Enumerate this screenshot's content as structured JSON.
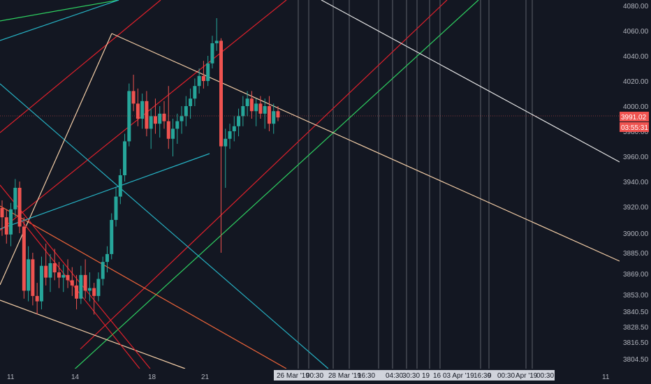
{
  "chart_data": {
    "type": "candlestick",
    "title": "",
    "grid": false,
    "legend": "none",
    "ylim": [
      3796,
      4088
    ],
    "y_ticks": [
      "4080.00",
      "4060.00",
      "4040.00",
      "4020.00",
      "4000.00",
      "3980.00",
      "3960.00",
      "3940.00",
      "3920.00",
      "3900.00",
      "3885.00",
      "3869.00",
      "3853.00",
      "3840.50",
      "3828.50",
      "3816.50",
      "3804.50"
    ],
    "x_ticks": [
      {
        "label": "11"
      },
      {
        "label": "14"
      },
      {
        "label": "18"
      },
      {
        "label": "21"
      },
      {
        "label": "11"
      }
    ],
    "x_markers": [
      "26 Mar '19",
      "00:30",
      "28 Mar '19",
      "16:30",
      "04:30",
      "30:30",
      "19",
      "16",
      "03 Apr '19",
      "16:30",
      "9",
      "00:30",
      "Apr '19",
      "00:30"
    ],
    "price_label": "3991.02",
    "countdown_label": "03:55:31",
    "current_price": 3991.02,
    "colors": {
      "background": "#131722",
      "up": "#26a69a",
      "down": "#ef5350",
      "red_line": "#e0202b",
      "green_line": "#2ed161",
      "teal_line": "#26b2c4",
      "peach_line": "#f5cfa8",
      "white_line": "#e8e8e8",
      "orange_line": "#f0653a",
      "vline": "#5d606b",
      "axis_text": "#b2b5be"
    },
    "candles": [
      [
        3919,
        3925,
        3898,
        3912
      ],
      [
        3912,
        3918,
        3892,
        3899
      ],
      [
        3899,
        3923,
        3890,
        3918
      ],
      [
        3918,
        3942,
        3912,
        3935
      ],
      [
        3935,
        3940,
        3900,
        3905
      ],
      [
        3905,
        3912,
        3850,
        3856
      ],
      [
        3856,
        3890,
        3848,
        3880
      ],
      [
        3880,
        3885,
        3845,
        3852
      ],
      [
        3852,
        3862,
        3838,
        3848
      ],
      [
        3848,
        3882,
        3842,
        3875
      ],
      [
        3875,
        3892,
        3860,
        3866
      ],
      [
        3866,
        3884,
        3855,
        3877
      ],
      [
        3877,
        3888,
        3864,
        3870
      ],
      [
        3870,
        3878,
        3858,
        3866
      ],
      [
        3866,
        3876,
        3855,
        3868
      ],
      [
        3868,
        3880,
        3858,
        3864
      ],
      [
        3864,
        3874,
        3852,
        3860
      ],
      [
        3860,
        3868,
        3842,
        3850
      ],
      [
        3850,
        3875,
        3846,
        3868
      ],
      [
        3868,
        3880,
        3850,
        3856
      ],
      [
        3856,
        3870,
        3848,
        3858
      ],
      [
        3858,
        3862,
        3838,
        3852
      ],
      [
        3852,
        3870,
        3848,
        3865
      ],
      [
        3865,
        3882,
        3860,
        3878
      ],
      [
        3878,
        3890,
        3870,
        3884
      ],
      [
        3884,
        3915,
        3880,
        3910
      ],
      [
        3910,
        3935,
        3905,
        3928
      ],
      [
        3928,
        3950,
        3922,
        3945
      ],
      [
        3945,
        3978,
        3940,
        3972
      ],
      [
        3972,
        4018,
        3968,
        4012
      ],
      [
        4012,
        4025,
        3996,
        4002
      ],
      [
        4002,
        4014,
        3984,
        3990
      ],
      [
        3990,
        4010,
        3982,
        4004
      ],
      [
        4004,
        4012,
        3976,
        3982
      ],
      [
        3982,
        3998,
        3966,
        3992
      ],
      [
        3992,
        4006,
        3978,
        3986
      ],
      [
        3986,
        4000,
        3975,
        3994
      ],
      [
        3994,
        4004,
        3982,
        3988
      ],
      [
        3988,
        4016,
        3966,
        3974
      ],
      [
        3974,
        3990,
        3960,
        3982
      ],
      [
        3982,
        3994,
        3970,
        3988
      ],
      [
        3988,
        4000,
        3978,
        3992
      ],
      [
        3992,
        4008,
        3984,
        4000
      ],
      [
        4000,
        4014,
        3990,
        4006
      ],
      [
        4006,
        4022,
        4000,
        4016
      ],
      [
        4016,
        4030,
        4010,
        4024
      ],
      [
        4024,
        4036,
        4014,
        4020
      ],
      [
        4020,
        4040,
        4016,
        4034
      ],
      [
        4034,
        4056,
        4030,
        4050
      ],
      [
        4050,
        4070,
        4044,
        4052
      ],
      [
        4052,
        4054,
        3885,
        3968
      ],
      [
        3968,
        3982,
        3935,
        3974
      ],
      [
        3974,
        3986,
        3966,
        3980
      ],
      [
        3980,
        3992,
        3972,
        3984
      ],
      [
        3984,
        3998,
        3976,
        3992
      ],
      [
        3992,
        4008,
        3984,
        4000
      ],
      [
        4000,
        4012,
        3992,
        4006
      ],
      [
        4006,
        4012,
        3990,
        3996
      ],
      [
        3996,
        4006,
        3984,
        4002
      ],
      [
        4002,
        4008,
        3990,
        3994
      ],
      [
        3994,
        4006,
        3982,
        4000
      ],
      [
        4000,
        4008,
        3980,
        3986
      ],
      [
        3986,
        4002,
        3978,
        3996
      ],
      [
        3996,
        4000,
        3988,
        3991
      ]
    ]
  }
}
